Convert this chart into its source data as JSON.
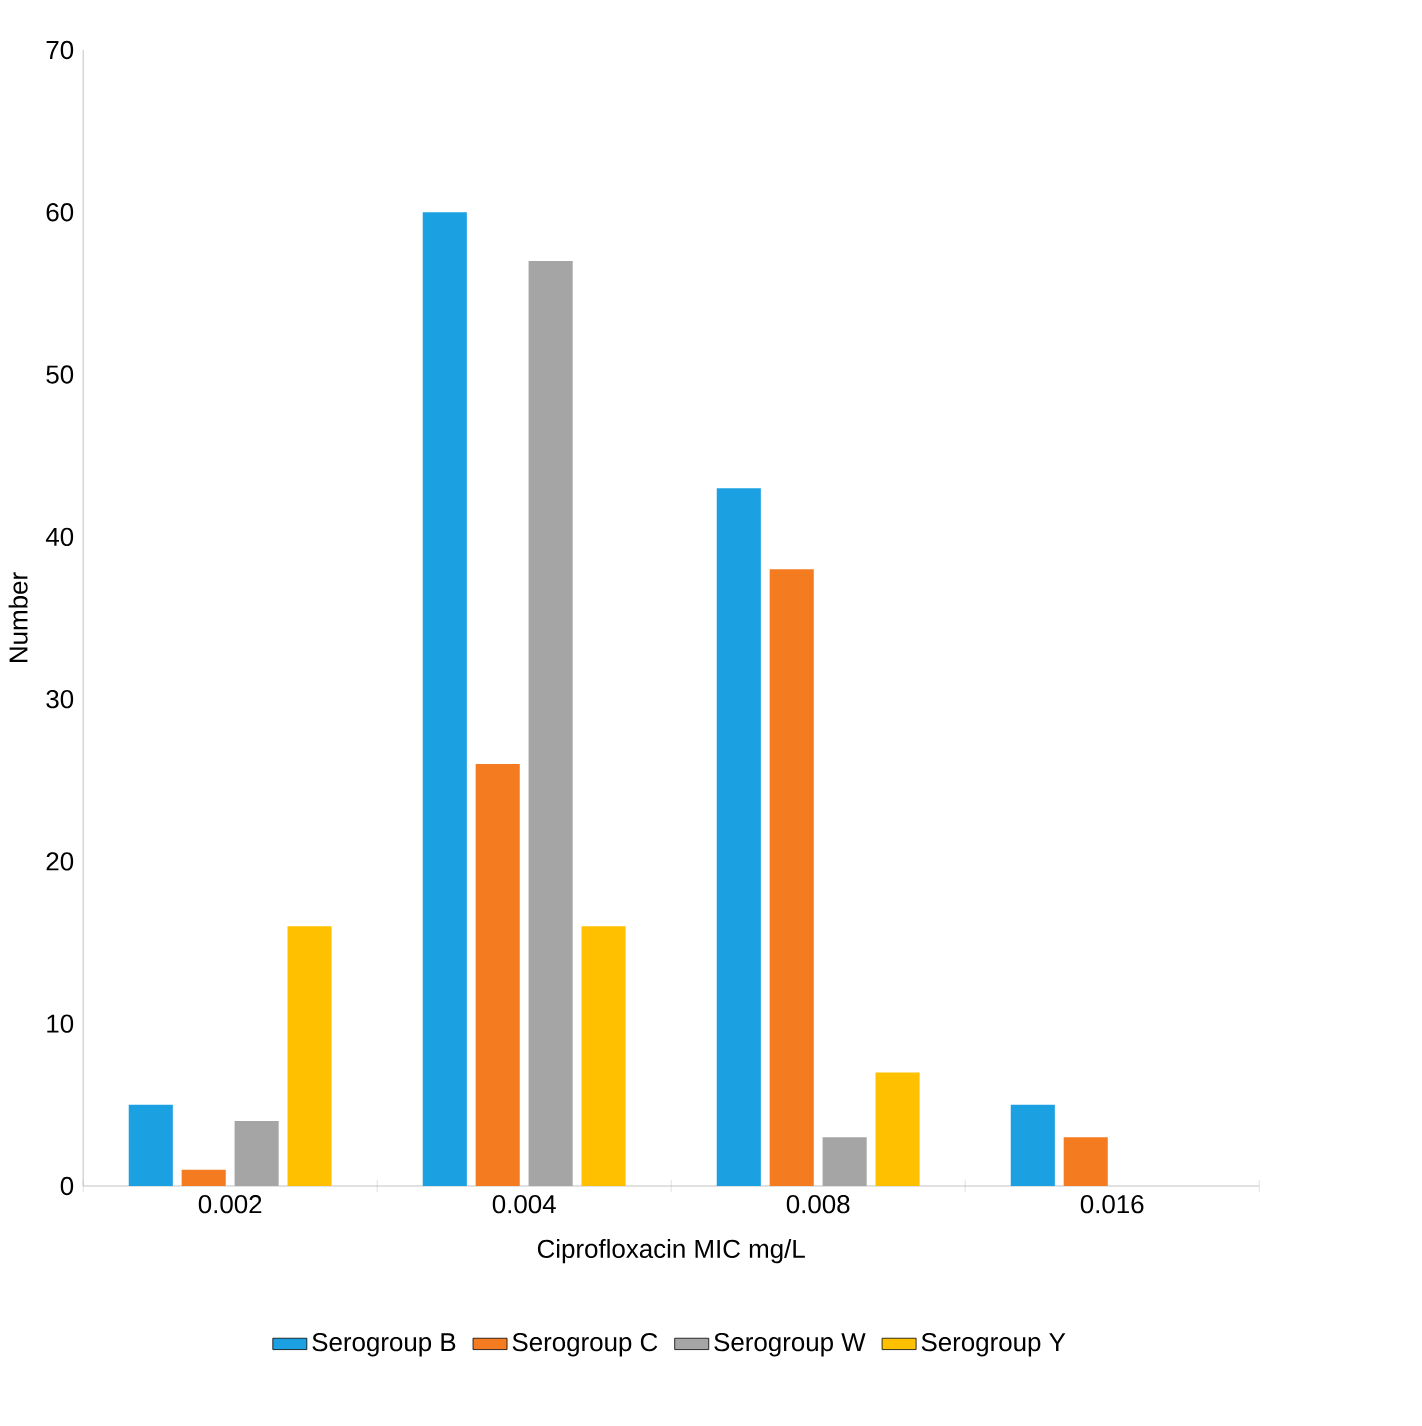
{
  "chart_data": {
    "type": "bar",
    "xlabel": "Ciprofloxacin MIC mg/L",
    "ylabel": "Number",
    "categories": [
      "0.002",
      "0.004",
      "0.008",
      "0.016"
    ],
    "series": [
      {
        "name": "Serogroup B",
        "color": "#1ba1e2",
        "values": [
          5,
          60,
          43,
          5
        ]
      },
      {
        "name": "Serogroup C",
        "color": "#f47b20",
        "values": [
          1,
          26,
          38,
          3
        ]
      },
      {
        "name": "Serogroup W",
        "color": "#a5a5a5",
        "values": [
          4,
          57,
          3,
          0
        ]
      },
      {
        "name": "Serogroup Y",
        "color": "#ffc000",
        "values": [
          16,
          16,
          7,
          0
        ]
      }
    ],
    "ylim": [
      0,
      70
    ],
    "yticks": [
      0,
      10,
      20,
      30,
      40,
      50,
      60,
      70
    ],
    "grid": false,
    "legend": "bottom"
  }
}
